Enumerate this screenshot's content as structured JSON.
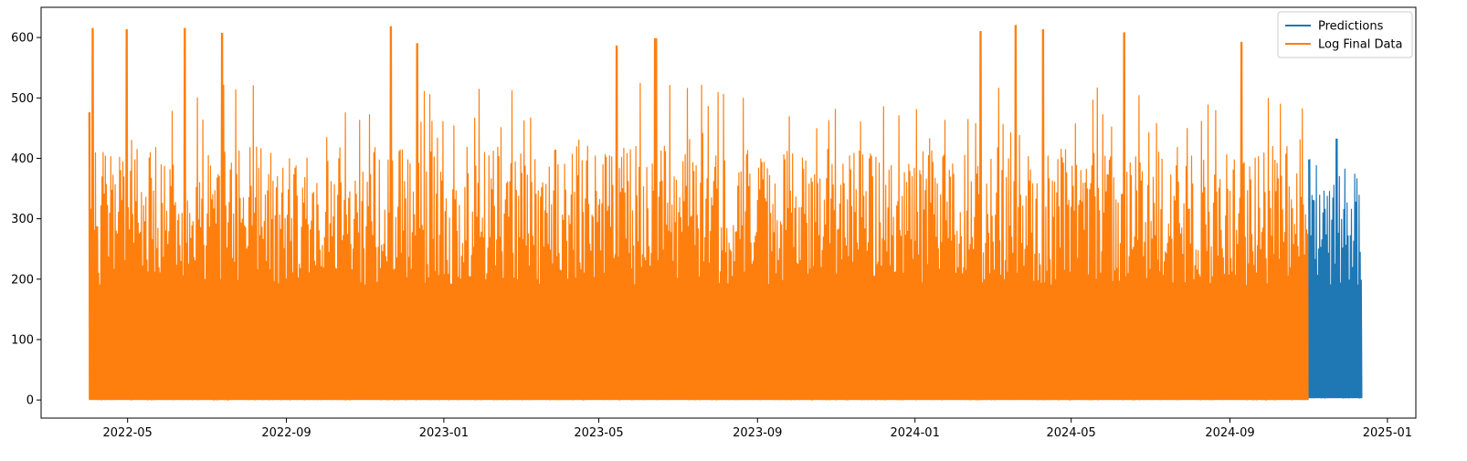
{
  "chart_data": {
    "type": "line",
    "title": "",
    "xlabel": "",
    "ylabel": "",
    "x_type": "date",
    "xlim": [
      "2022-02-23",
      "2025-01-23"
    ],
    "ylim": [
      -30,
      650
    ],
    "x_ticks": [
      "2022-05",
      "2022-09",
      "2023-01",
      "2023-05",
      "2023-09",
      "2024-01",
      "2024-05",
      "2024-09",
      "2025-01"
    ],
    "x_tick_labels": [
      "2022-05",
      "2022-09",
      "2023-01",
      "2023-05",
      "2023-09",
      "2024-01",
      "2024-05",
      "2024-09",
      "2025-01"
    ],
    "y_ticks": [
      0,
      100,
      200,
      300,
      400,
      500,
      600
    ],
    "grid": false,
    "legend": "top-right",
    "series": [
      {
        "name": "Predictions",
        "color": "#1f77b4",
        "x_start": "2024-11-01",
        "x_end": "2024-12-12",
        "min": 3,
        "max": 432,
        "typical_peak": 390,
        "notable_peaks": [
          {
            "x": "2024-11-01",
            "y": 398
          },
          {
            "x": "2024-11-23",
            "y": 432
          }
        ]
      },
      {
        "name": "Log Final Data",
        "color": "#ff7f0e",
        "x_start": "2022-04-01",
        "x_end": "2024-11-01",
        "min": 0,
        "max": 620,
        "typical_peak": 420,
        "notable_peaks": [
          {
            "x": "2022-04-01",
            "y": 476
          },
          {
            "x": "2022-04-04",
            "y": 615
          },
          {
            "x": "2022-04-30",
            "y": 613
          },
          {
            "x": "2022-06-14",
            "y": 615
          },
          {
            "x": "2022-07-13",
            "y": 607
          },
          {
            "x": "2022-11-21",
            "y": 618
          },
          {
            "x": "2022-12-11",
            "y": 590
          },
          {
            "x": "2023-05-15",
            "y": 586
          },
          {
            "x": "2023-06-14",
            "y": 598
          },
          {
            "x": "2024-02-21",
            "y": 610
          },
          {
            "x": "2024-03-19",
            "y": 620
          },
          {
            "x": "2024-04-09",
            "y": 613
          },
          {
            "x": "2024-06-11",
            "y": 608
          },
          {
            "x": "2024-09-10",
            "y": 592
          }
        ]
      }
    ]
  }
}
